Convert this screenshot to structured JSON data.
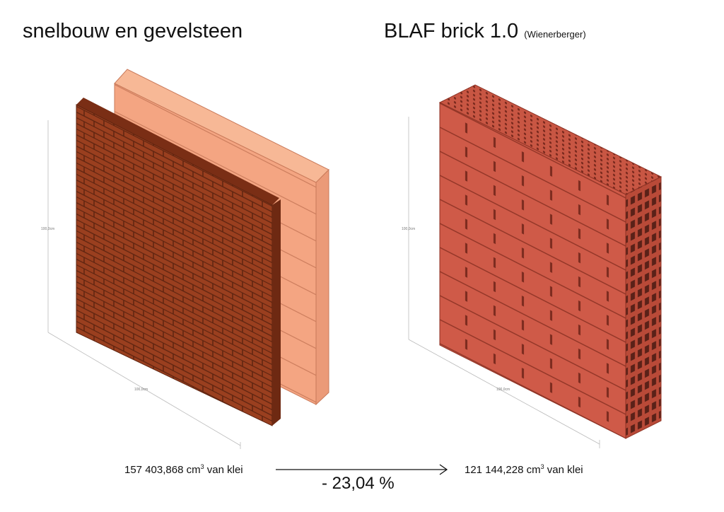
{
  "left": {
    "title": "snelbouw en gevelsteen",
    "dim_height": "100,0cm",
    "dim_width": "100,0cm",
    "volume": "157 403,868",
    "unit": "cm",
    "unit_sup": "3",
    "suffix": "van klei"
  },
  "right": {
    "title": "BLAF brick 1.0",
    "subtitle": "(Wienerberger)",
    "dim_height": "100,0cm",
    "dim_width": "100,0cm",
    "volume": "121 144,228",
    "unit": "cm",
    "unit_sup": "3",
    "suffix": "van klei"
  },
  "reduction": "- 23,04 %",
  "colors": {
    "facing_brick": "#9a3f1f",
    "block": "#f4a582",
    "blaf": "#cf5a48"
  }
}
